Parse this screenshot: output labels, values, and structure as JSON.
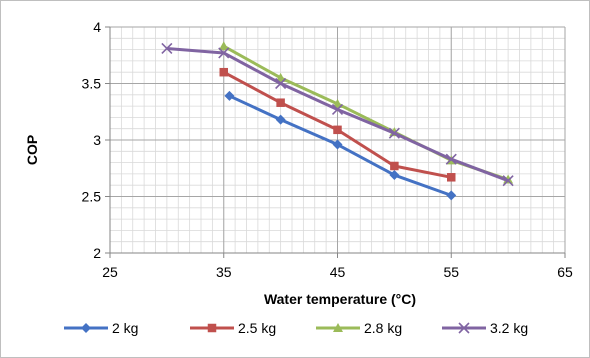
{
  "chart_data": {
    "type": "line",
    "xlabel": "Water temperature (°C)",
    "ylabel": "COP",
    "xlim": [
      25,
      65
    ],
    "ylim": [
      2,
      4
    ],
    "x_ticks": [
      "25",
      "35",
      "45",
      "55",
      "65"
    ],
    "y_ticks": [
      "2",
      "2.5",
      "3",
      "3.5",
      "4"
    ],
    "x_tick_values": [
      25,
      35,
      45,
      55,
      65
    ],
    "y_tick_values": [
      2,
      2.5,
      3,
      3.5,
      4
    ],
    "minor_x_step": 1,
    "minor_y_step": 0.1,
    "grid": true,
    "legend_position": "bottom",
    "series": [
      {
        "name": "2 kg",
        "color": "#4472C4",
        "marker": "diamond",
        "x": [
          35.5,
          40,
          45,
          50,
          55
        ],
        "y": [
          3.39,
          3.18,
          2.96,
          2.69,
          2.51
        ]
      },
      {
        "name": "2.5 kg",
        "color": "#C0504D",
        "marker": "square",
        "x": [
          35,
          40,
          45,
          50,
          55
        ],
        "y": [
          3.6,
          3.33,
          3.09,
          2.77,
          2.67
        ]
      },
      {
        "name": "2.8 kg",
        "color": "#9BBB59",
        "marker": "triangle",
        "x": [
          35,
          40,
          45,
          50,
          55,
          60
        ],
        "y": [
          3.83,
          3.55,
          3.32,
          3.07,
          2.82,
          2.65
        ]
      },
      {
        "name": "3.2 kg",
        "color": "#8064A2",
        "marker": "x",
        "x": [
          30,
          35,
          40,
          45,
          50,
          55,
          60
        ],
        "y": [
          3.81,
          3.77,
          3.5,
          3.27,
          3.06,
          2.83,
          2.64
        ]
      }
    ]
  }
}
